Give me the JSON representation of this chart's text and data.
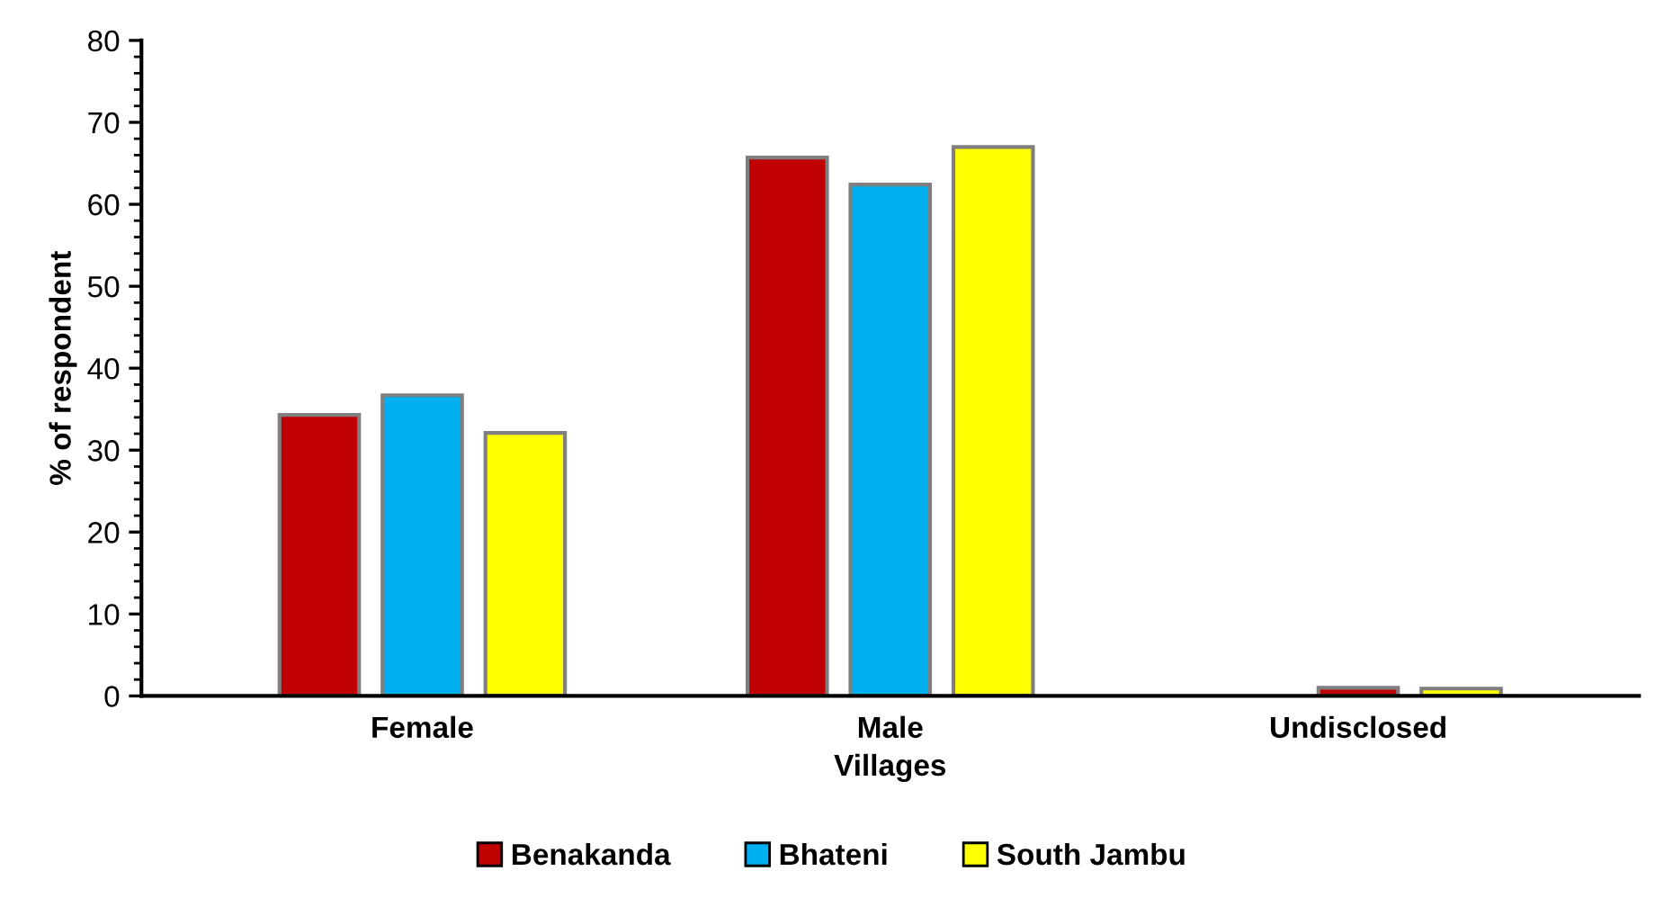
{
  "chart_data": {
    "type": "bar",
    "xlabel": "Villages",
    "ylabel": "% of respondent",
    "categories": [
      "Female",
      "Male",
      "Undisclosed"
    ],
    "series": [
      {
        "name": "Benakanda",
        "color": "#c00000",
        "values": [
          34.3,
          65.7,
          null
        ]
      },
      {
        "name": "Bhateni",
        "color": "#00b0f0",
        "colors": [
          "#00b0f0",
          "#00b0f0",
          "#c00000"
        ],
        "values": [
          36.7,
          62.4,
          1.0
        ]
      },
      {
        "name": "South Jambu",
        "color": "#ffff00",
        "values": [
          32.1,
          67.0,
          0.9
        ]
      }
    ],
    "ylim": [
      0,
      80
    ],
    "yticks": [
      0,
      10,
      20,
      30,
      40,
      50,
      60,
      70,
      80
    ],
    "grid": false,
    "legend": "bottom"
  }
}
